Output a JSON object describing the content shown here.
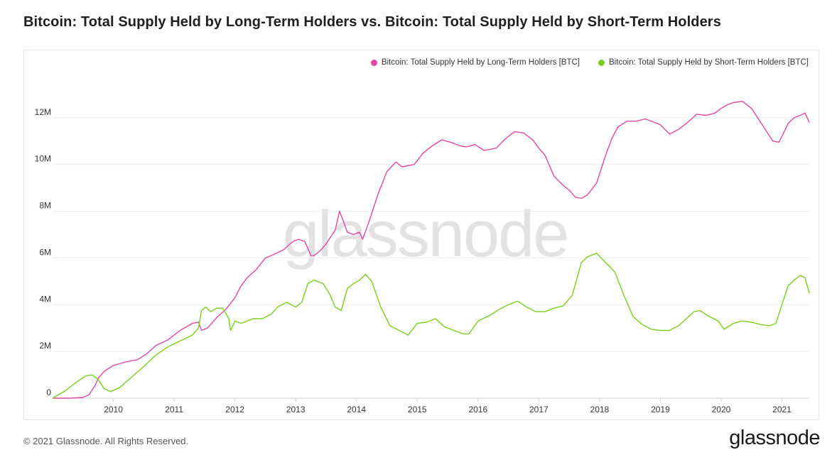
{
  "header": {
    "title": "Bitcoin: Total Supply Held by Long-Term Holders vs. Bitcoin: Total Supply Held by Short-Term Holders"
  },
  "footer": {
    "copyright": "© 2021 Glassnode. All Rights Reserved.",
    "brand": "glassnode"
  },
  "watermark": "glassnode",
  "colors": {
    "lth": "#e0489f",
    "sth": "#7ccd1f",
    "grid": "#ececec"
  },
  "chart_data": {
    "type": "line",
    "title": "Bitcoin: Total Supply Held by Long-Term Holders vs. Bitcoin: Total Supply Held by Short-Term Holders",
    "xlabel": "",
    "ylabel": "",
    "xlim": [
      2009.0,
      2021.45
    ],
    "ylim": [
      0,
      14000000
    ],
    "x_ticks": [
      {
        "value": 2010,
        "label": "2010"
      },
      {
        "value": 2011,
        "label": "2011"
      },
      {
        "value": 2012,
        "label": "2012"
      },
      {
        "value": 2013,
        "label": "2013"
      },
      {
        "value": 2014,
        "label": "2014"
      },
      {
        "value": 2015,
        "label": "2015"
      },
      {
        "value": 2016,
        "label": "2016"
      },
      {
        "value": 2017,
        "label": "2017"
      },
      {
        "value": 2018,
        "label": "2018"
      },
      {
        "value": 2019,
        "label": "2019"
      },
      {
        "value": 2020,
        "label": "2020"
      },
      {
        "value": 2021,
        "label": "2021"
      }
    ],
    "y_ticks": [
      {
        "value": 0,
        "label": "0"
      },
      {
        "value": 2000000,
        "label": "2M"
      },
      {
        "value": 4000000,
        "label": "4M"
      },
      {
        "value": 6000000,
        "label": "6M"
      },
      {
        "value": 8000000,
        "label": "8M"
      },
      {
        "value": 10000000,
        "label": "10M"
      },
      {
        "value": 12000000,
        "label": "12M"
      }
    ],
    "legend_position": "top-right",
    "grid": true,
    "series": [
      {
        "name": "Bitcoin: Total Supply Held by Long-Term Holders [BTC]",
        "color": "#e0489f",
        "x": [
          2009.0,
          2009.3,
          2009.5,
          2009.6,
          2009.7,
          2009.75,
          2009.85,
          2010.0,
          2010.2,
          2010.4,
          2010.55,
          2010.7,
          2010.9,
          2011.1,
          2011.3,
          2011.4,
          2011.45,
          2011.55,
          2011.7,
          2011.85,
          2012.0,
          2012.1,
          2012.2,
          2012.35,
          2012.5,
          2012.6,
          2012.8,
          2012.95,
          2013.05,
          2013.15,
          2013.25,
          2013.3,
          2013.4,
          2013.5,
          2013.65,
          2013.72,
          2013.78,
          2013.85,
          2013.95,
          2014.05,
          2014.1,
          2014.2,
          2014.35,
          2014.5,
          2014.65,
          2014.75,
          2014.85,
          2014.95,
          2015.1,
          2015.25,
          2015.4,
          2015.55,
          2015.7,
          2015.8,
          2015.95,
          2016.1,
          2016.3,
          2016.45,
          2016.6,
          2016.75,
          2016.9,
          2017.0,
          2017.1,
          2017.25,
          2017.4,
          2017.5,
          2017.6,
          2017.7,
          2017.8,
          2017.95,
          2018.0,
          2018.1,
          2018.2,
          2018.3,
          2018.45,
          2018.6,
          2018.75,
          2018.9,
          2019.0,
          2019.15,
          2019.3,
          2019.45,
          2019.6,
          2019.75,
          2019.9,
          2020.0,
          2020.1,
          2020.2,
          2020.35,
          2020.5,
          2020.65,
          2020.8,
          2020.85,
          2020.95,
          2021.0,
          2021.1,
          2021.2,
          2021.3,
          2021.38,
          2021.45
        ],
        "values": [
          0,
          0,
          30000,
          150000,
          550000,
          850000,
          1150000,
          1400000,
          1550000,
          1650000,
          1900000,
          2250000,
          2500000,
          2900000,
          3200000,
          3250000,
          2900000,
          3000000,
          3450000,
          3800000,
          4300000,
          4800000,
          5150000,
          5500000,
          6000000,
          6100000,
          6350000,
          6700000,
          6800000,
          6700000,
          6100000,
          6100000,
          6300000,
          6600000,
          7200000,
          8000000,
          7600000,
          7100000,
          7000000,
          7100000,
          6800000,
          7500000,
          8700000,
          9700000,
          10100000,
          9900000,
          9950000,
          10000000,
          10500000,
          10800000,
          11050000,
          10950000,
          10800000,
          10750000,
          10850000,
          10600000,
          10700000,
          11100000,
          11400000,
          11350000,
          11050000,
          10700000,
          10400000,
          9500000,
          9100000,
          8900000,
          8600000,
          8550000,
          8700000,
          9200000,
          9600000,
          10400000,
          11100000,
          11600000,
          11850000,
          11850000,
          11950000,
          11800000,
          11700000,
          11300000,
          11500000,
          11800000,
          12150000,
          12100000,
          12200000,
          12400000,
          12550000,
          12650000,
          12700000,
          12400000,
          11800000,
          11200000,
          11000000,
          10950000,
          11200000,
          11750000,
          12000000,
          12100000,
          12200000,
          11800000
        ]
      },
      {
        "name": "Bitcoin: Total Supply Held by Short-Term Holders [BTC]",
        "color": "#7ccd1f",
        "x": [
          2009.0,
          2009.2,
          2009.4,
          2009.55,
          2009.65,
          2009.75,
          2009.85,
          2009.95,
          2010.1,
          2010.3,
          2010.5,
          2010.7,
          2010.9,
          2011.1,
          2011.3,
          2011.4,
          2011.45,
          2011.52,
          2011.6,
          2011.7,
          2011.8,
          2011.9,
          2011.92,
          2011.93,
          2012.0,
          2012.1,
          2012.3,
          2012.45,
          2012.6,
          2012.7,
          2012.85,
          2013.0,
          2013.1,
          2013.2,
          2013.3,
          2013.45,
          2013.55,
          2013.65,
          2013.75,
          2013.85,
          2013.95,
          2014.05,
          2014.15,
          2014.25,
          2014.4,
          2014.55,
          2014.7,
          2014.85,
          2015.0,
          2015.15,
          2015.3,
          2015.45,
          2015.6,
          2015.75,
          2015.85,
          2016.0,
          2016.2,
          2016.35,
          2016.5,
          2016.65,
          2016.8,
          2016.95,
          2017.1,
          2017.25,
          2017.4,
          2017.55,
          2017.7,
          2017.8,
          2017.95,
          2018.1,
          2018.25,
          2018.4,
          2018.55,
          2018.7,
          2018.85,
          2019.0,
          2019.15,
          2019.3,
          2019.45,
          2019.55,
          2019.65,
          2019.8,
          2019.95,
          2020.05,
          2020.2,
          2020.35,
          2020.5,
          2020.65,
          2020.8,
          2020.9,
          2021.0,
          2021.1,
          2021.2,
          2021.3,
          2021.38,
          2021.45
        ],
        "values": [
          0,
          300000,
          700000,
          950000,
          1000000,
          800000,
          400000,
          280000,
          450000,
          900000,
          1350000,
          1850000,
          2200000,
          2450000,
          2700000,
          3000000,
          3750000,
          3900000,
          3700000,
          3850000,
          3850000,
          3400000,
          3000000,
          2900000,
          3300000,
          3200000,
          3400000,
          3400000,
          3600000,
          3900000,
          4100000,
          3900000,
          4100000,
          4900000,
          5050000,
          4900000,
          4500000,
          3900000,
          3750000,
          4700000,
          4900000,
          5050000,
          5300000,
          5000000,
          3900000,
          3100000,
          2900000,
          2700000,
          3200000,
          3250000,
          3400000,
          3050000,
          2900000,
          2750000,
          2750000,
          3300000,
          3550000,
          3800000,
          4000000,
          4150000,
          3900000,
          3700000,
          3700000,
          3850000,
          3950000,
          4400000,
          5800000,
          6050000,
          6200000,
          5800000,
          5400000,
          4400000,
          3500000,
          3150000,
          2950000,
          2900000,
          2900000,
          3100000,
          3450000,
          3700000,
          3750000,
          3500000,
          3300000,
          2950000,
          3200000,
          3300000,
          3250000,
          3150000,
          3100000,
          3200000,
          4000000,
          4800000,
          5050000,
          5250000,
          5150000,
          4500000
        ]
      }
    ]
  }
}
